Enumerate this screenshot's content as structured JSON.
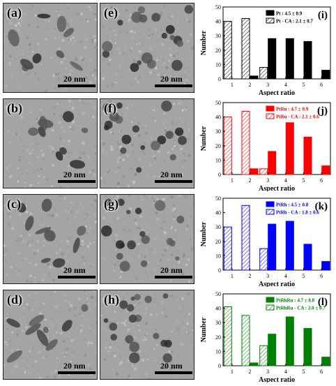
{
  "tem_panels": [
    {
      "label": "(a)",
      "scale": "20 nm"
    },
    {
      "label": "(b)",
      "scale": "20 nm"
    },
    {
      "label": "(c)",
      "scale": "20 nm"
    },
    {
      "label": "(d)",
      "scale": "20 nm"
    },
    {
      "label": "(e)",
      "scale": "20 nm"
    },
    {
      "label": "(f)",
      "scale": "20 nm"
    },
    {
      "label": "(g)",
      "scale": "20 nm"
    },
    {
      "label": "(h)",
      "scale": "20 nm"
    }
  ],
  "chart_data": [
    {
      "type": "bar",
      "panel_label": "(i)",
      "xlabel": "Aspect ratio",
      "ylabel": "Number",
      "ylim": [
        0,
        50
      ],
      "yticks": [
        "0",
        "10",
        "20",
        "30",
        "40",
        "50"
      ],
      "categories": [
        "1",
        "2",
        "3",
        "4",
        "5",
        "6"
      ],
      "series": [
        {
          "name": "Pt : 4.5 ± 0.9",
          "style": "solid",
          "values": [
            0,
            2,
            28,
            28,
            26,
            6
          ]
        },
        {
          "name": "Pt - CA : 2.1 ± 0.7",
          "style": "hatched",
          "values": [
            40,
            42,
            8,
            0,
            0,
            0
          ]
        }
      ],
      "color": "#000000"
    },
    {
      "type": "bar",
      "panel_label": "(j)",
      "xlabel": "Aspect ratio",
      "ylabel": "Number",
      "ylim": [
        0,
        50
      ],
      "yticks": [
        "0",
        "10",
        "20",
        "30",
        "40",
        "50"
      ],
      "categories": [
        "1",
        "2",
        "3",
        "4",
        "5",
        "6"
      ],
      "series": [
        {
          "name": "PtRu : 4.7 ± 0.9",
          "style": "solid",
          "values": [
            0,
            4,
            16,
            36,
            26,
            6
          ]
        },
        {
          "name": "PtRu - CA : 2.1 ± 0.6",
          "style": "hatched",
          "values": [
            40,
            44,
            4,
            0,
            0,
            0
          ]
        }
      ],
      "color": "#ff0000"
    },
    {
      "type": "bar",
      "panel_label": "(k)",
      "xlabel": "Aspect ratio",
      "ylabel": "Number",
      "ylim": [
        0,
        50
      ],
      "yticks": [
        "0",
        "10",
        "20",
        "30",
        "40",
        "50"
      ],
      "categories": [
        "1",
        "2",
        "3",
        "4",
        "5",
        "6"
      ],
      "series": [
        {
          "name": "PtRh : 4.5 ± 0.8",
          "style": "solid",
          "values": [
            0,
            0,
            32,
            34,
            18,
            6
          ]
        },
        {
          "name": "PtRh - CA : 1.8 ± 0.6",
          "style": "hatched",
          "values": [
            30,
            45,
            15,
            0,
            0,
            0
          ]
        }
      ],
      "color": "#0000ff"
    },
    {
      "type": "bar",
      "panel_label": "(l)",
      "xlabel": "Aspect ratio",
      "ylabel": "Number",
      "ylim": [
        0,
        50
      ],
      "yticks": [
        "0",
        "10",
        "20",
        "30",
        "40",
        "50"
      ],
      "categories": [
        "1",
        "2",
        "3",
        "4",
        "5",
        "6"
      ],
      "series": [
        {
          "name": "PtRhRu : 4.7 ± 0.8",
          "style": "solid",
          "values": [
            0,
            2,
            22,
            34,
            26,
            6
          ]
        },
        {
          "name": "PtRhRu - CA : 2.0 ± 0.7",
          "style": "hatched",
          "values": [
            41,
            35,
            14,
            0,
            0,
            0
          ]
        }
      ],
      "color": "#008000"
    }
  ]
}
